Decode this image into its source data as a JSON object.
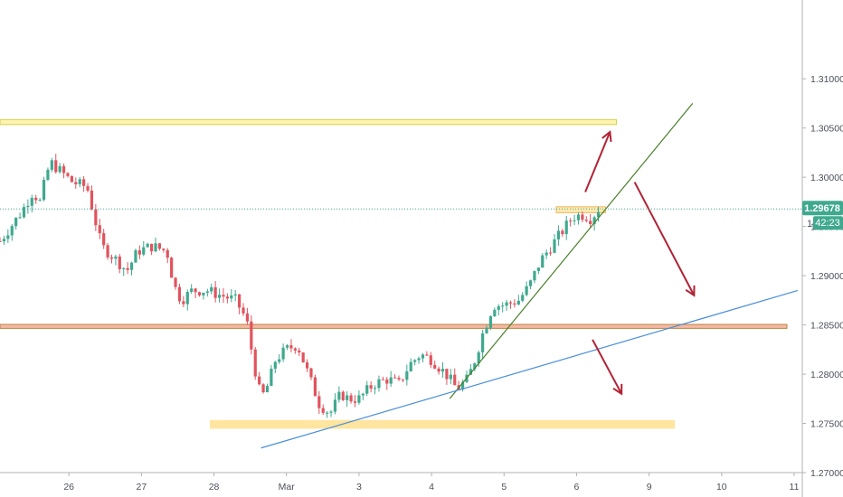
{
  "chart_data": {
    "type": "candlestick",
    "title": "",
    "xlabel": "",
    "ylabel": "",
    "ylim": [
      1.27,
      1.318
    ],
    "grid": false,
    "y_ticks": [
      "1.27000",
      "1.27500",
      "1.28000",
      "1.28500",
      "1.29000",
      "1.29500",
      "1.30000",
      "1.30500",
      "1.31000"
    ],
    "x_ticks": [
      {
        "label": "26",
        "day": 1
      },
      {
        "label": "27",
        "day": 2
      },
      {
        "label": "28",
        "day": 3
      },
      {
        "label": "Mar",
        "day": 4
      },
      {
        "label": "3",
        "day": 5
      },
      {
        "label": "4",
        "day": 6
      },
      {
        "label": "5",
        "day": 7
      },
      {
        "label": "6",
        "day": 8
      },
      {
        "label": "9",
        "day": 9
      },
      {
        "label": "10",
        "day": 10
      },
      {
        "label": "11",
        "day": 11
      }
    ],
    "x_range": [
      0.05,
      11.05
    ],
    "last_price": {
      "value": 1.29678,
      "label": "1.29678",
      "countdown": "42:23",
      "partial_label": "1."
    },
    "price_path": [
      [
        0.05,
        1.2935
      ],
      [
        0.2,
        1.295
      ],
      [
        0.35,
        1.2965
      ],
      [
        0.5,
        1.2985
      ],
      [
        0.6,
        1.2975
      ],
      [
        0.7,
        1.3005
      ],
      [
        0.75,
        1.3015
      ],
      [
        0.9,
        1.3005
      ],
      [
        1.05,
        1.2995
      ],
      [
        1.25,
        1.299
      ],
      [
        1.35,
        1.296
      ],
      [
        1.45,
        1.293
      ],
      [
        1.6,
        1.292
      ],
      [
        1.8,
        1.2905
      ],
      [
        1.95,
        1.2925
      ],
      [
        2.15,
        1.293
      ],
      [
        2.35,
        1.2925
      ],
      [
        2.45,
        1.289
      ],
      [
        2.55,
        1.2875
      ],
      [
        2.7,
        1.2885
      ],
      [
        2.9,
        1.2885
      ],
      [
        3.1,
        1.288
      ],
      [
        3.3,
        1.2875
      ],
      [
        3.45,
        1.2855
      ],
      [
        3.55,
        1.281
      ],
      [
        3.65,
        1.2775
      ],
      [
        3.75,
        1.279
      ],
      [
        3.85,
        1.2815
      ],
      [
        4.0,
        1.2825
      ],
      [
        4.15,
        1.283
      ],
      [
        4.3,
        1.28
      ],
      [
        4.45,
        1.277
      ],
      [
        4.6,
        1.276
      ],
      [
        4.75,
        1.278
      ],
      [
        4.85,
        1.2775
      ],
      [
        5.0,
        1.2775
      ],
      [
        5.2,
        1.279
      ],
      [
        5.4,
        1.2795
      ],
      [
        5.55,
        1.279
      ],
      [
        5.7,
        1.281
      ],
      [
        5.85,
        1.282
      ],
      [
        6.0,
        1.2815
      ],
      [
        6.2,
        1.28
      ],
      [
        6.35,
        1.2785
      ],
      [
        6.5,
        1.2795
      ],
      [
        6.6,
        1.2815
      ],
      [
        6.7,
        1.284
      ],
      [
        6.85,
        1.287
      ],
      [
        7.0,
        1.287
      ],
      [
        7.2,
        1.2875
      ],
      [
        7.35,
        1.289
      ],
      [
        7.5,
        1.2915
      ],
      [
        7.65,
        1.293
      ],
      [
        7.8,
        1.2945
      ],
      [
        7.95,
        1.296
      ],
      [
        8.1,
        1.2962
      ],
      [
        8.2,
        1.2958
      ],
      [
        8.3,
        1.29678
      ]
    ],
    "annotations": {
      "zones": [
        {
          "name": "resistance-zone-top",
          "x1": 0.05,
          "x2": 8.55,
          "y1": 1.30535,
          "y2": 1.30585,
          "fill": "#fff3b0",
          "stroke": "#d4d24a"
        },
        {
          "name": "support-zone-red",
          "x1": 0.05,
          "x2": 10.9,
          "y1": 1.28465,
          "y2": 1.28505,
          "fill": "#f6b8a6",
          "stroke": "#b8843a"
        },
        {
          "name": "support-zone-bottom",
          "x1": 2.95,
          "x2": 9.35,
          "y1": 1.2745,
          "y2": 1.2753,
          "fill": "#ffe5a0",
          "stroke": "#ffe5a0"
        },
        {
          "name": "consolidation-box",
          "x1": 7.72,
          "x2": 8.4,
          "y1": 1.2964,
          "y2": 1.297,
          "fill": "#ffe9b0",
          "stroke": "#f0b45a"
        }
      ],
      "lines": [
        {
          "name": "green-trendline",
          "x1": 6.25,
          "y1": 1.2775,
          "x2": 9.6,
          "y2": 1.3075,
          "color": "#4a7f2a"
        },
        {
          "name": "blue-trendline",
          "x1": 3.65,
          "y1": 1.2725,
          "x2": 11.05,
          "y2": 1.2885,
          "color": "#4a8fdc"
        }
      ],
      "arrows": [
        {
          "name": "up-arrow",
          "x1": 8.12,
          "y1": 1.2985,
          "x2": 8.46,
          "y2": 1.3046,
          "color": "#b22234"
        },
        {
          "name": "down-arrow-1",
          "x1": 8.8,
          "y1": 1.2995,
          "x2": 9.62,
          "y2": 1.288,
          "color": "#b22234"
        },
        {
          "name": "down-arrow-2",
          "x1": 8.22,
          "y1": 1.2835,
          "x2": 8.62,
          "y2": 1.278,
          "color": "#b22234"
        }
      ]
    },
    "colors": {
      "up": "#3fa98f",
      "down": "#e0545e",
      "current_price": "#3fa98f",
      "axis_text": "#4a4f5a",
      "axis_line": "#b0b3b8"
    }
  }
}
